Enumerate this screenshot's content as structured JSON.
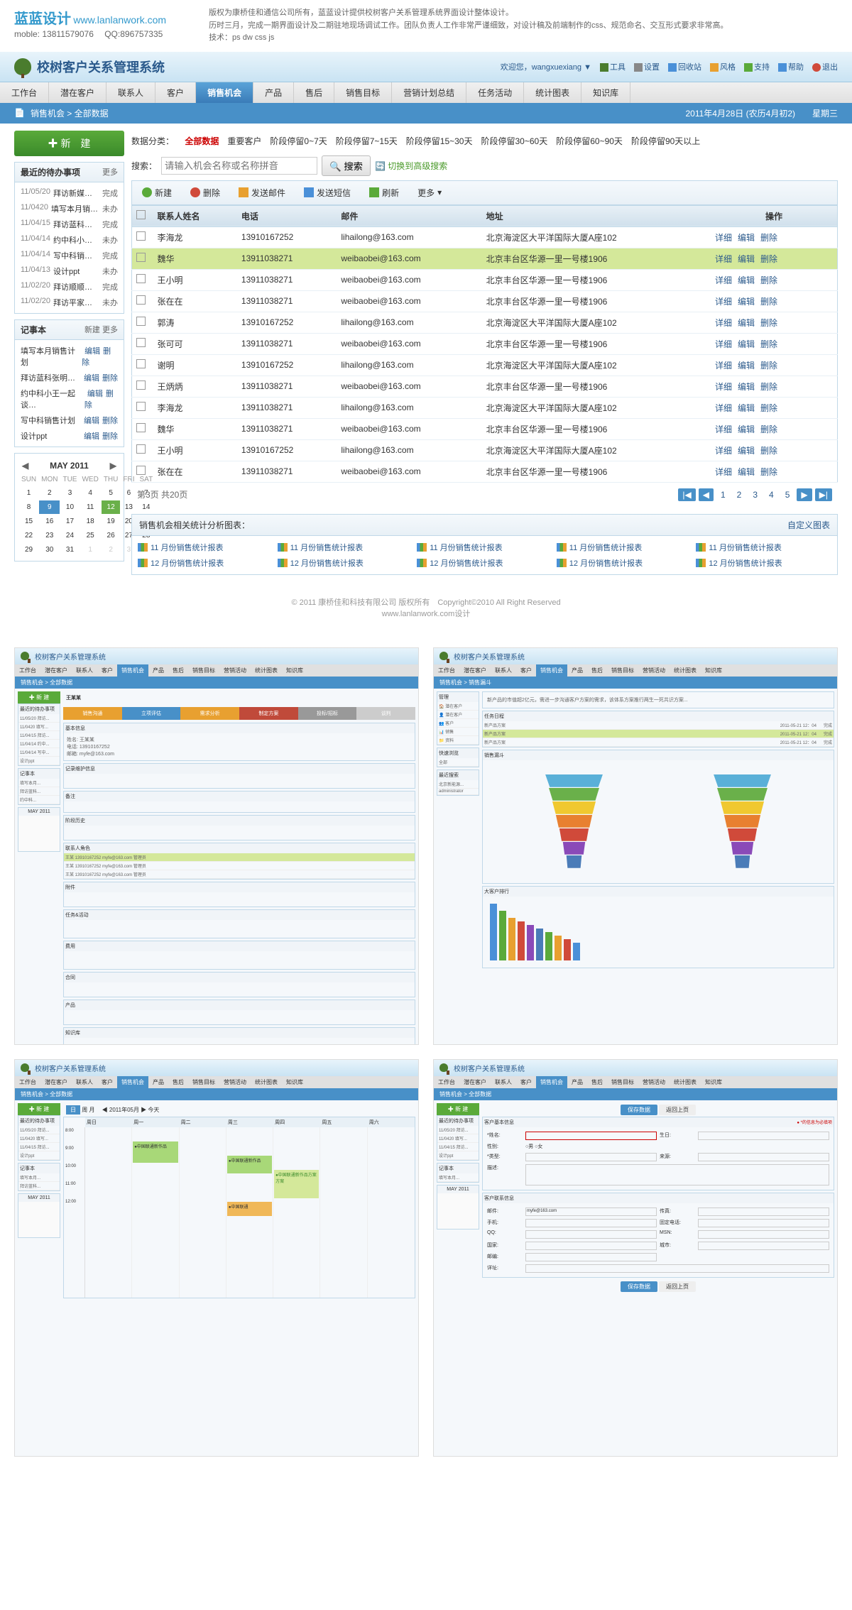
{
  "header": {
    "logo": "蓝蓝设计",
    "url": "www.lanlanwork.com",
    "mobile": "moble: 13811579076",
    "qq": "QQ:896757335",
    "desc1": "版权为康桥佳和通信公司所有，蓝蓝设计提供校树客户关系管理系统界面设计整体设计。",
    "desc2": "历时三月，完成一期界面设计及二期驻地现场调试工作。团队负责人工作非常严谨细致，对设计稿及前端制作的css、规范命名、交互形式要求非常高。",
    "desc3": "技术：ps dw css js"
  },
  "system": {
    "title": "校树客户关系管理系统",
    "welcome": "欢迎您，wangxuexiang",
    "links": [
      "工具",
      "设置",
      "回收站",
      "风格",
      "支持",
      "帮助",
      "退出"
    ]
  },
  "nav": [
    "工作台",
    "潜在客户",
    "联系人",
    "客户",
    "销售机会",
    "产品",
    "售后",
    "销售目标",
    "营销计划总结",
    "任务活动",
    "统计图表",
    "知识库"
  ],
  "navActive": 4,
  "breadcrumb": {
    "path": "销售机会 > 全部数据",
    "date": "2011年4月28日 (农历4月初2)　　星期三"
  },
  "newBtn": "新　建",
  "todo": {
    "title": "最近的待办事项",
    "more": "更多",
    "items": [
      {
        "date": "11/05/20",
        "title": "拜访新媒幅特张总",
        "status": "完成"
      },
      {
        "date": "11/0420",
        "title": "填写本月销售计划",
        "status": "未办"
      },
      {
        "date": "11/04/15",
        "title": "拜访蓝科张明…",
        "status": "完成"
      },
      {
        "date": "11/04/14",
        "title": "约中科小王一起谈…",
        "status": "未办"
      },
      {
        "date": "11/04/14",
        "title": "写中科销售计划",
        "status": "完成"
      },
      {
        "date": "11/04/13",
        "title": "设计ppt",
        "status": "未办"
      },
      {
        "date": "11/02/20",
        "title": "拜访顺顺堂李海…",
        "status": "完成"
      },
      {
        "date": "11/02/20",
        "title": "拜访平家科技王明…",
        "status": "未办"
      }
    ]
  },
  "notes": {
    "title": "记事本",
    "newBtn": "新建",
    "more": "更多",
    "items": [
      "填写本月销售计划",
      "拜访蓝科张明…",
      "约中科小王一起谈…",
      "写中科销售计划",
      "设计ppt"
    ],
    "edit": "编辑",
    "del": "删除"
  },
  "calendar": {
    "title": "MAY 2011",
    "days": [
      "SUN",
      "MON",
      "TUE",
      "WED",
      "THU",
      "FRI",
      "SAT"
    ]
  },
  "filters": {
    "label": "数据分类：",
    "items": [
      "全部数据",
      "重要客户",
      "阶段停留0~7天",
      "阶段停留7~15天",
      "阶段停留15~30天",
      "阶段停留30~60天",
      "阶段停留60~90天",
      "阶段停留90天以上"
    ]
  },
  "search": {
    "label": "搜索：",
    "placeholder": "请输入机会名称或名称拼音",
    "btn": "搜索",
    "adv": "切换到高级搜索"
  },
  "toolbar": [
    "新建",
    "删除",
    "发送邮件",
    "发送短信",
    "刷新",
    "更多"
  ],
  "table": {
    "cols": [
      "",
      "联系人姓名",
      "电话",
      "邮件",
      "地址",
      "操作"
    ],
    "actions": [
      "详细",
      "编辑",
      "删除"
    ],
    "rows": [
      {
        "name": "李海龙",
        "phone": "13910167252",
        "email": "lihailong@163.com",
        "addr": "北京海淀区大平洋国际大厦A座102",
        "hl": false
      },
      {
        "name": "魏华",
        "phone": "13911038271",
        "email": "weibaobei@163.com",
        "addr": "北京丰台区华源一里一号楼1906",
        "hl": true
      },
      {
        "name": "王小明",
        "phone": "13911038271",
        "email": "weibaobei@163.com",
        "addr": "北京丰台区华源一里一号楼1906",
        "hl": false
      },
      {
        "name": "张在在",
        "phone": "13911038271",
        "email": "weibaobei@163.com",
        "addr": "北京丰台区华源一里一号楼1906",
        "hl": false
      },
      {
        "name": "郭涛",
        "phone": "13910167252",
        "email": "lihailong@163.com",
        "addr": "北京海淀区大平洋国际大厦A座102",
        "hl": false
      },
      {
        "name": "张可可",
        "phone": "13911038271",
        "email": "weibaobei@163.com",
        "addr": "北京丰台区华源一里一号楼1906",
        "hl": false
      },
      {
        "name": "谢明",
        "phone": "13910167252",
        "email": "lihailong@163.com",
        "addr": "北京海淀区大平洋国际大厦A座102",
        "hl": false
      },
      {
        "name": "王炳炳",
        "phone": "13911038271",
        "email": "weibaobei@163.com",
        "addr": "北京丰台区华源一里一号楼1906",
        "hl": false
      },
      {
        "name": "李海龙",
        "phone": "13911038271",
        "email": "lihailong@163.com",
        "addr": "北京海淀区大平洋国际大厦A座102",
        "hl": false
      },
      {
        "name": "魏华",
        "phone": "13911038271",
        "email": "weibaobei@163.com",
        "addr": "北京丰台区华源一里一号楼1906",
        "hl": false
      },
      {
        "name": "王小明",
        "phone": "13910167252",
        "email": "lihailong@163.com",
        "addr": "北京海淀区大平洋国际大厦A座102",
        "hl": false
      },
      {
        "name": "张在在",
        "phone": "13911038271",
        "email": "weibaobei@163.com",
        "addr": "北京丰台区华源一里一号楼1906",
        "hl": false
      }
    ]
  },
  "pagination": {
    "info": "第3页 共20页",
    "pages": [
      "1",
      "2",
      "3",
      "4",
      "5"
    ]
  },
  "stats": {
    "title": "销售机会相关统计分析图表：",
    "custom": "自定义图表",
    "items": [
      "11 月份销售统计报表",
      "11 月份销售统计报表",
      "11 月份销售统计报表",
      "11 月份销售统计报表",
      "11 月份销售统计报表",
      "12 月份销售统计报表",
      "12 月份销售统计报表",
      "12 月份销售统计报表",
      "12 月份销售统计报表",
      "12 月份销售统计报表"
    ]
  },
  "footer": {
    "line1": "© 2011 康桥佳和科技有限公司 版权所有　Copyright©2010 All Right Reserved",
    "line2": "www.lanlanwork.com设计"
  },
  "funnelColors": [
    "#5ab0d8",
    "#6ab04a",
    "#f0c830",
    "#e88030",
    "#d04a3a",
    "#8a4ab8",
    "#4a7cb8"
  ],
  "stepColors": [
    "#e8a030",
    "#4890c8",
    "#e8a030",
    "#c04a3a",
    "#999",
    "#999"
  ],
  "thumbTitle": "校树客户关系管理系统"
}
